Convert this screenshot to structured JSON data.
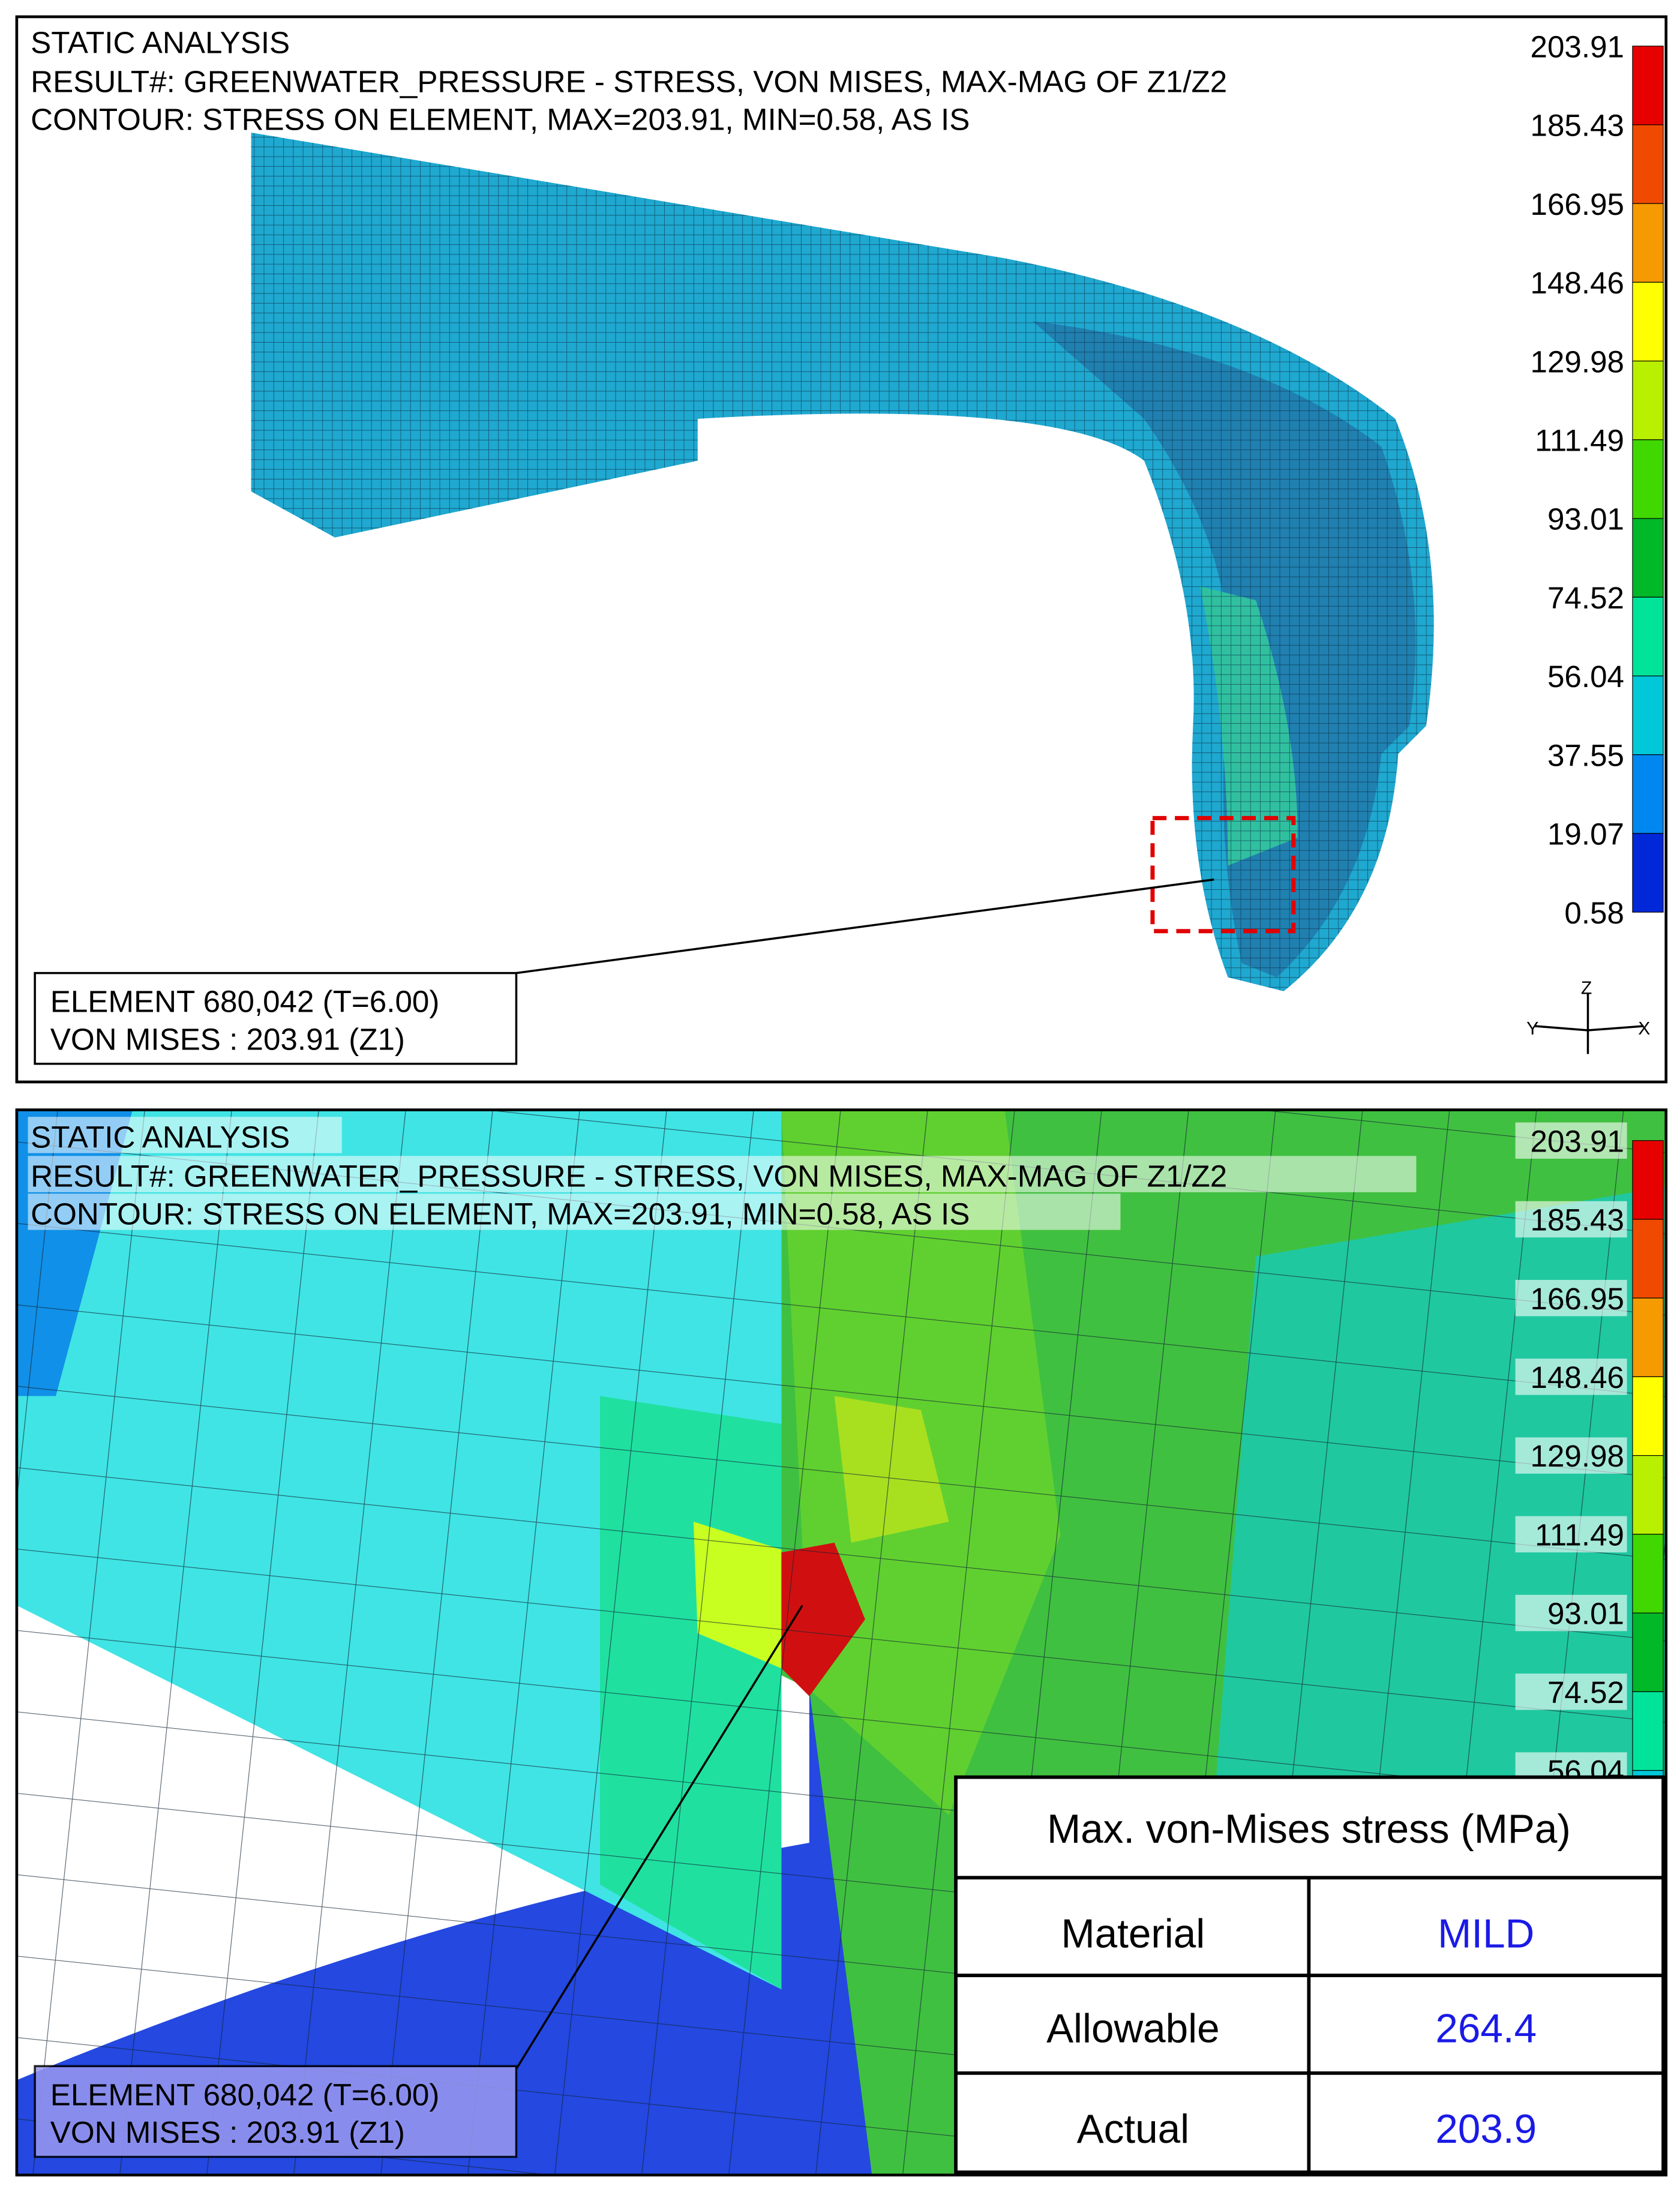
{
  "panels": [
    {
      "header": [
        "STATIC ANALYSIS",
        "RESULT#: GREENWATER_PRESSURE - STRESS, VON MISES, MAX-MAG OF Z1/Z2",
        "CONTOUR: STRESS ON ELEMENT, MAX=203.91, MIN=0.58, AS IS"
      ],
      "legend": [
        "203.91",
        "185.43",
        "166.95",
        "148.46",
        "129.98",
        "111.49",
        "93.01",
        "74.52",
        "56.04",
        "37.55",
        "19.07",
        "0.58"
      ],
      "element_label": [
        "ELEMENT 680,042 (T=6.00)",
        "VON MISES : 203.91 (Z1)"
      ],
      "axes": [
        "Z",
        "Y",
        "X"
      ]
    },
    {
      "header": [
        "STATIC ANALYSIS",
        "RESULT#: GREENWATER_PRESSURE - STRESS, VON MISES, MAX-MAG OF Z1/Z2",
        "CONTOUR: STRESS ON ELEMENT, MAX=203.91, MIN=0.58, AS IS"
      ],
      "legend": [
        "203.91",
        "185.43",
        "166.95",
        "148.46",
        "129.98",
        "111.49",
        "93.01",
        "74.52",
        "56.04"
      ],
      "element_label": [
        "ELEMENT 680,042 (T=6.00)",
        "VON MISES : 203.91 (Z1)"
      ]
    }
  ],
  "table": {
    "title": "Max. von-Mises stress (MPa)",
    "rows": [
      [
        "Material",
        "MILD"
      ],
      [
        "Allowable",
        "264.4"
      ],
      [
        "Actual",
        "203.9"
      ]
    ]
  }
}
